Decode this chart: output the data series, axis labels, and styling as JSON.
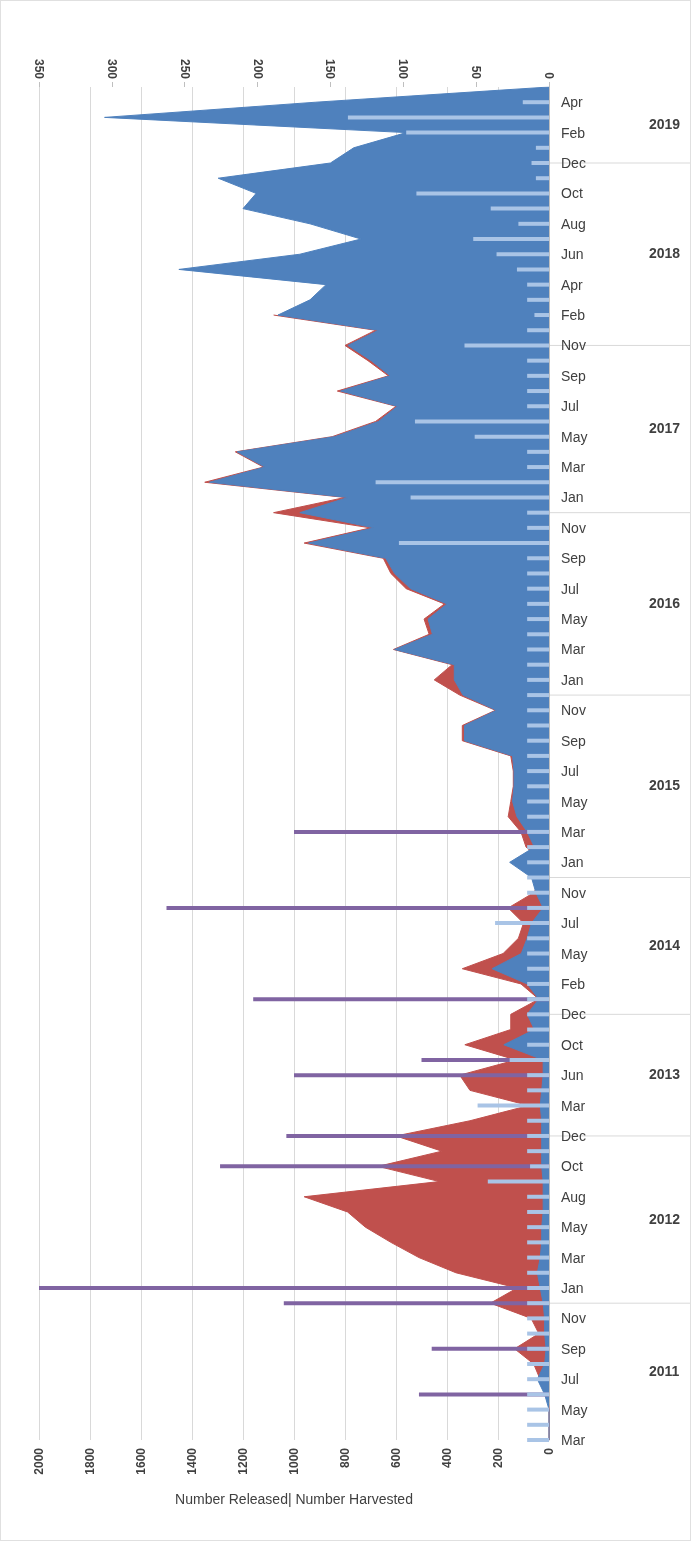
{
  "chart_data": {
    "type": "area",
    "orientation": "horizontal",
    "xlabel": "Number Released| Number Harvested",
    "categories": [
      null,
      "Apr",
      null,
      "Feb",
      null,
      "Dec",
      null,
      "Oct",
      null,
      "Aug",
      null,
      "Jun",
      null,
      "Apr",
      null,
      "Feb",
      null,
      "Nov",
      null,
      "Sep",
      null,
      "Jul",
      null,
      "May",
      null,
      "Mar",
      null,
      "Jan",
      null,
      "Nov",
      null,
      "Sep",
      null,
      "Jul",
      null,
      "May",
      null,
      "Mar",
      null,
      "Jan",
      null,
      "Nov",
      null,
      "Sep",
      null,
      "Jul",
      null,
      "May",
      null,
      "Mar",
      null,
      "Jan",
      null,
      "Nov",
      null,
      "Jul",
      null,
      "May",
      null,
      "Feb",
      null,
      "Dec",
      null,
      "Oct",
      null,
      "Jun",
      null,
      "Mar",
      null,
      "Dec",
      null,
      "Oct",
      null,
      "Aug",
      null,
      "May",
      null,
      "Mar",
      null,
      "Jan",
      null,
      "Nov",
      null,
      "Sep",
      null,
      "Jul",
      null,
      "May",
      null,
      "Mar"
    ],
    "annotations": [
      "2019",
      "2018",
      "2017",
      "2016",
      "2015",
      "2014",
      "2013",
      "2012",
      "2011"
    ],
    "xlim": [
      2000,
      0
    ],
    "xticks": [
      2000,
      1800,
      1600,
      1400,
      1200,
      1000,
      800,
      600,
      400,
      200,
      0
    ],
    "x2lim": [
      350,
      0
    ],
    "x2ticks": [
      350,
      300,
      250,
      200,
      150,
      100,
      50,
      0
    ],
    "grid": "x",
    "series": [
      {
        "color": "#c0504d",
        "values": [
          null,
          null,
          null,
          null,
          null,
          null,
          null,
          null,
          null,
          null,
          null,
          null,
          null,
          null,
          null,
          1080,
          680,
          800,
          710,
          630,
          830,
          600,
          680,
          850,
          1230,
          1120,
          1350,
          800,
          1080,
          700,
          960,
          650,
          620,
          560,
          410,
          490,
          470,
          610,
          380,
          450,
          350,
          210,
          340,
          340,
          150,
          140,
          140,
          150,
          160,
          110,
          90,
          20,
          25,
          60,
          160,
          100,
          120,
          180,
          340,
          110,
          40,
          150,
          150,
          330,
          130,
          350,
          310,
          80,
          310,
          600,
          420,
          670,
          430,
          960,
          790,
          720,
          620,
          510,
          365,
          125,
          230,
          70,
          40,
          135,
          60,
          35,
          5,
          0,
          0,
          0
        ]
      },
      {
        "color": "#4f81bd",
        "axis": "x2",
        "values": [
          0,
          160,
          305,
          98,
          134,
          150,
          227,
          201,
          210,
          164,
          129,
          171,
          254,
          153,
          164,
          186,
          117,
          138,
          122,
          109,
          143,
          104,
          117,
          147,
          214,
          195,
          233,
          138,
          171,
          120,
          165,
          112,
          106,
          95,
          70,
          83,
          80,
          106,
          65,
          65,
          59,
          36,
          58,
          58,
          25,
          24,
          24,
          25,
          22,
          15,
          10,
          27,
          12,
          9,
          4,
          12,
          15,
          19,
          39,
          15,
          7,
          15,
          10,
          31,
          4,
          4,
          5,
          6,
          5,
          5,
          5,
          5,
          4,
          4,
          4,
          5,
          5,
          6,
          8,
          6,
          4,
          3,
          3,
          2,
          3,
          8,
          3,
          0,
          0,
          0
        ]
      },
      {
        "type": "bar",
        "color": "#a9c4e6",
        "axis": "x2",
        "values": [
          null,
          18,
          138,
          98,
          9,
          12,
          9,
          91,
          40,
          21,
          52,
          36,
          22,
          15,
          15,
          10,
          15,
          58,
          15,
          15,
          15,
          15,
          92,
          51,
          15,
          15,
          119,
          95,
          15,
          15,
          103,
          15,
          15,
          15,
          15,
          15,
          15,
          15,
          15,
          15,
          15,
          15,
          15,
          15,
          15,
          15,
          15,
          15,
          15,
          15,
          15,
          15,
          15,
          15,
          15,
          37,
          15,
          15,
          15,
          15,
          15,
          15,
          15,
          15,
          27,
          15,
          15,
          49,
          15,
          15,
          15,
          13,
          42,
          15,
          15,
          15,
          15,
          15,
          15,
          15,
          15,
          15,
          15,
          15,
          15,
          15,
          15,
          15,
          15,
          15
        ]
      },
      {
        "type": "bar",
        "color": "#8064a2",
        "values": [
          null,
          null,
          null,
          null,
          null,
          null,
          null,
          null,
          null,
          null,
          null,
          null,
          null,
          null,
          null,
          null,
          null,
          null,
          null,
          null,
          null,
          null,
          null,
          null,
          null,
          null,
          null,
          null,
          null,
          null,
          null,
          null,
          null,
          null,
          null,
          null,
          null,
          null,
          null,
          null,
          null,
          null,
          null,
          null,
          null,
          null,
          null,
          null,
          null,
          1000,
          null,
          null,
          null,
          null,
          1500,
          null,
          null,
          null,
          null,
          null,
          1160,
          null,
          null,
          null,
          500,
          1000,
          null,
          null,
          null,
          1030,
          null,
          1290,
          null,
          null,
          null,
          null,
          null,
          null,
          null,
          2000,
          1040,
          null,
          null,
          460,
          null,
          null,
          510,
          null,
          null,
          null
        ]
      }
    ]
  }
}
